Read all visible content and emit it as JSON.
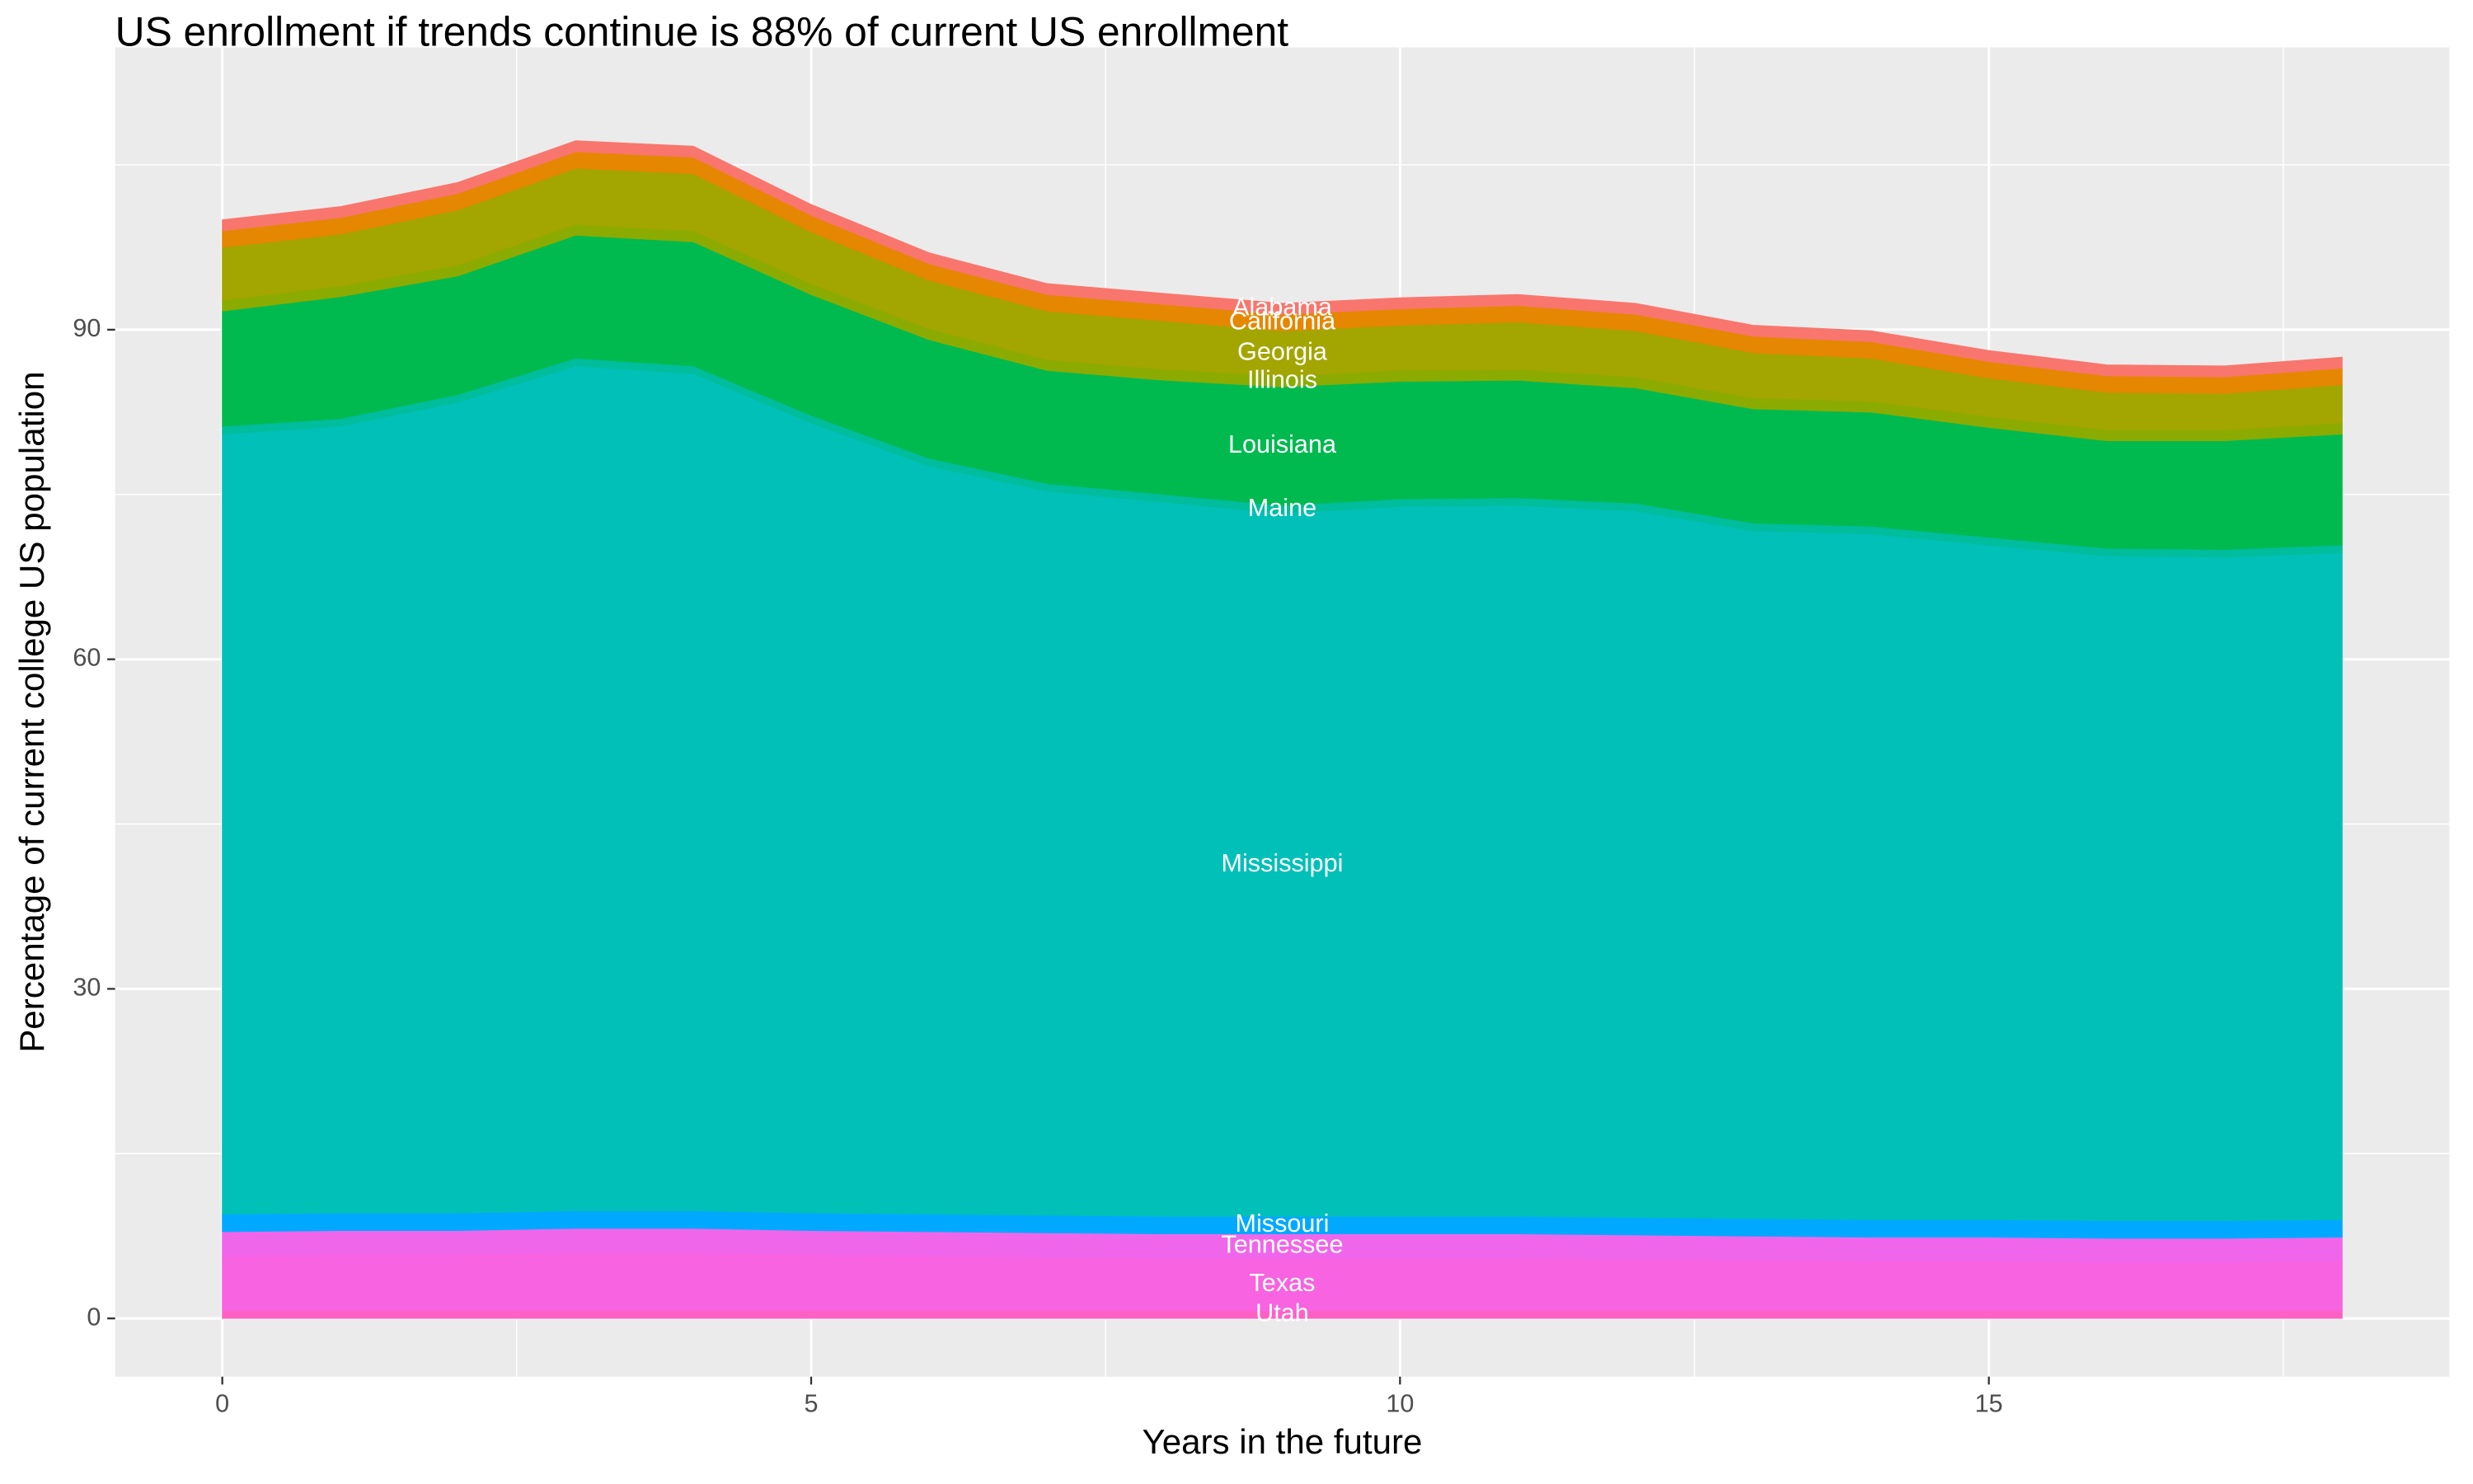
{
  "chart_data": {
    "type": "area",
    "stacked": true,
    "title": "US enrollment if trends continue is 88% of current US enrollment",
    "x_label": "Years in the future",
    "y_label": "Percentage of current college US population",
    "x": [
      0,
      1,
      2,
      3,
      4,
      5,
      6,
      7,
      8,
      9,
      10,
      11,
      12,
      13,
      14,
      15,
      16,
      17,
      18
    ],
    "xlim": [
      -0.91,
      18.91
    ],
    "xticks": [
      0,
      5,
      10,
      15
    ],
    "ylim": [
      -5.3,
      115.7
    ],
    "yticks": [
      0,
      30,
      60,
      90
    ],
    "grid": true,
    "series": [
      {
        "name": "Utah",
        "color": "#FF61C3",
        "values": [
          0.7,
          0.7,
          0.7,
          0.7,
          0.7,
          0.7,
          0.7,
          0.7,
          0.7,
          0.7,
          0.7,
          0.7,
          0.7,
          0.7,
          0.7,
          0.7,
          0.7,
          0.7,
          0.7
        ]
      },
      {
        "name": "Texas",
        "color": "#F763E0",
        "values": [
          5.0,
          5.1,
          5.1,
          5.3,
          5.3,
          5.1,
          5.0,
          4.9,
          4.8,
          4.8,
          4.8,
          4.8,
          4.7,
          4.6,
          4.5,
          4.5,
          4.4,
          4.4,
          4.5
        ]
      },
      {
        "name": "Tennessee",
        "color": "#F066EA",
        "values": [
          2.2,
          2.2,
          2.2,
          2.2,
          2.2,
          2.2,
          2.2,
          2.2,
          2.2,
          2.2,
          2.2,
          2.2,
          2.2,
          2.2,
          2.2,
          2.2,
          2.2,
          2.2,
          2.2
        ]
      },
      {
        "name": "Missouri",
        "color": "#00A9FF",
        "values": [
          1.6,
          1.6,
          1.6,
          1.6,
          1.6,
          1.6,
          1.6,
          1.6,
          1.6,
          1.6,
          1.6,
          1.6,
          1.6,
          1.6,
          1.6,
          1.6,
          1.6,
          1.6,
          1.6
        ]
      },
      {
        "name": "Mississippi",
        "color": "#00C0B8",
        "values": [
          71.0,
          71.6,
          73.8,
          76.9,
          76.2,
          71.9,
          68.1,
          65.9,
          65.0,
          64.0,
          64.6,
          64.7,
          64.3,
          62.6,
          62.4,
          61.4,
          60.5,
          60.4,
          60.7
        ]
      },
      {
        "name": "Maine",
        "color": "#00BD9D",
        "values": [
          0.7,
          0.7,
          0.7,
          0.7,
          0.7,
          0.7,
          0.7,
          0.7,
          0.7,
          0.7,
          0.7,
          0.7,
          0.7,
          0.7,
          0.7,
          0.7,
          0.7,
          0.7,
          0.7
        ]
      },
      {
        "name": "Louisiana",
        "color": "#00BA50",
        "values": [
          10.5,
          11.1,
          10.8,
          11.2,
          11.3,
          11.0,
          10.8,
          10.3,
          10.4,
          10.8,
          10.7,
          10.7,
          10.5,
          10.4,
          10.4,
          10.0,
          9.8,
          9.9,
          10.1
        ]
      },
      {
        "name": "Illinois",
        "color": "#8CAB00",
        "values": [
          1.0,
          1.0,
          1.0,
          1.0,
          1.0,
          1.0,
          1.0,
          1.0,
          1.0,
          1.0,
          1.0,
          1.0,
          1.0,
          1.0,
          1.0,
          1.0,
          1.0,
          1.0,
          1.0
        ]
      },
      {
        "name": "Georgia",
        "color": "#A3A500",
        "values": [
          4.8,
          4.7,
          5.0,
          5.1,
          5.2,
          4.7,
          4.4,
          4.4,
          4.4,
          4.1,
          4.1,
          4.3,
          4.2,
          4.1,
          3.9,
          3.5,
          3.4,
          3.3,
          3.5
        ]
      },
      {
        "name": "California",
        "color": "#E58700",
        "values": [
          1.5,
          1.5,
          1.5,
          1.5,
          1.5,
          1.5,
          1.5,
          1.5,
          1.5,
          1.5,
          1.5,
          1.5,
          1.5,
          1.5,
          1.5,
          1.5,
          1.5,
          1.5,
          1.5
        ]
      },
      {
        "name": "Alabama",
        "color": "#F8766D",
        "values": [
          1.0,
          1.0,
          1.0,
          1.0,
          1.0,
          1.0,
          1.0,
          1.0,
          1.0,
          1.0,
          1.0,
          1.0,
          1.0,
          1.0,
          1.0,
          1.0,
          1.0,
          1.0,
          1.0
        ]
      }
    ]
  }
}
